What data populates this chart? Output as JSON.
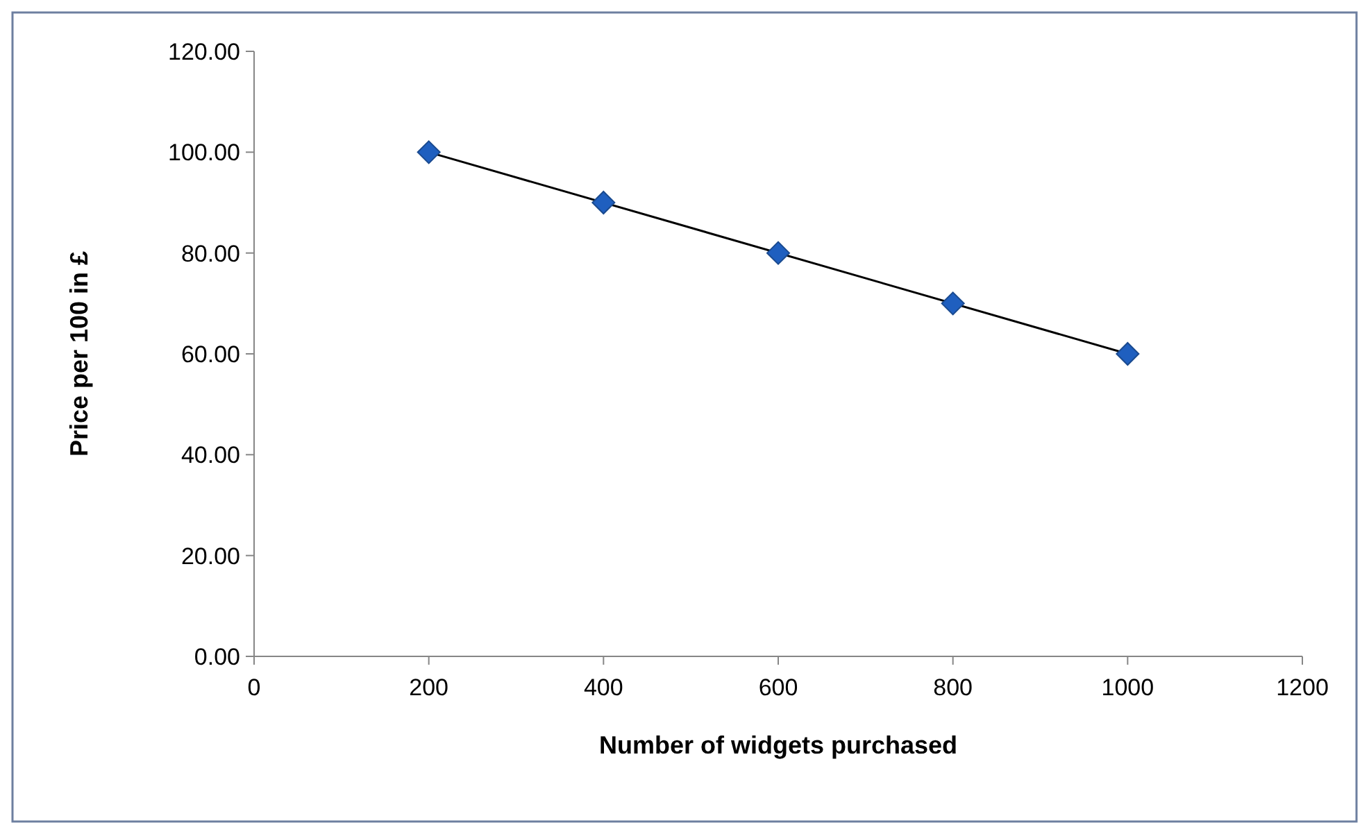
{
  "chart_data": {
    "type": "scatter",
    "xlabel": "Number of widgets purchased",
    "ylabel": "Price per 100 in £",
    "x": [
      200,
      400,
      600,
      800,
      1000
    ],
    "series": [
      {
        "type": "scatter",
        "color": "#1f5fbf",
        "marker": "diamond",
        "values": [
          100,
          90,
          80,
          70,
          60
        ]
      },
      {
        "type": "line",
        "color": "#000000",
        "marker": "none",
        "line_style": "solid",
        "x": [
          200,
          1000
        ],
        "values": [
          100,
          60
        ]
      }
    ],
    "xlim": [
      0,
      1200
    ],
    "xticks": [
      0,
      200,
      400,
      600,
      800,
      1000,
      1200
    ],
    "ylim": [
      0,
      120
    ],
    "yticks": [
      {
        "value": 0,
        "label": "0.00"
      },
      {
        "value": 20,
        "label": "20.00"
      },
      {
        "value": 40,
        "label": "40.00"
      },
      {
        "value": 60,
        "label": "60.00"
      },
      {
        "value": 80,
        "label": "80.00"
      },
      {
        "value": 100,
        "label": "100.00"
      },
      {
        "value": 120,
        "label": "120.00"
      }
    ],
    "grid": false
  }
}
